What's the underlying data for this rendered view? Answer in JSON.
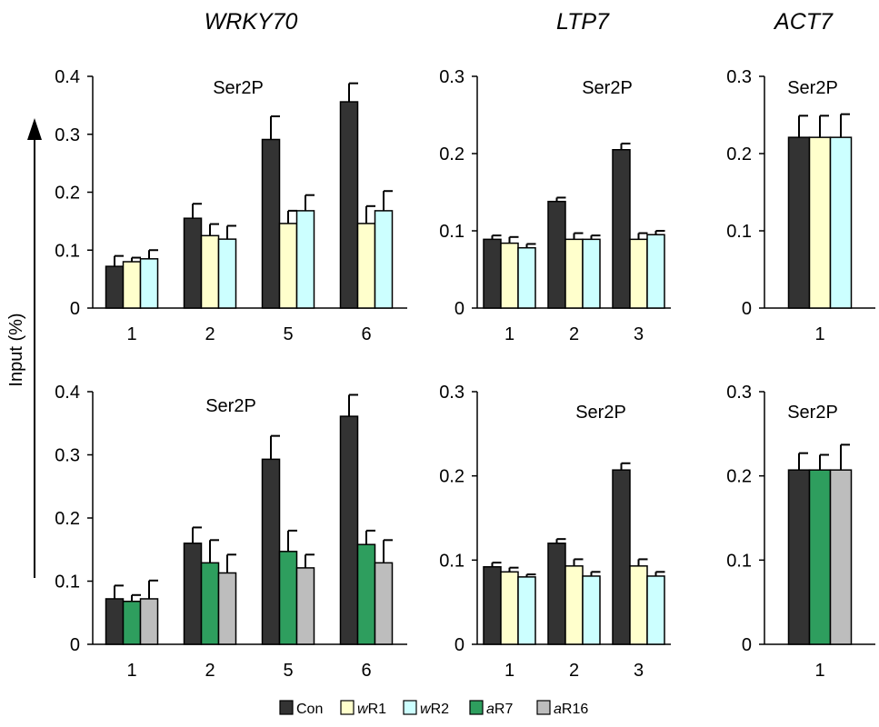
{
  "gene_titles": [
    "WRKY70",
    "LTP7",
    "ACT7"
  ],
  "ylabel": "Input (%)",
  "colors": {
    "Con": "#333333",
    "wR1": "#ffffcc",
    "wR2": "#ccffff",
    "aR7": "#2e9e5e",
    "aR16": "#bdbdbd",
    "bar_stroke": "#000000"
  },
  "legend": {
    "entries": [
      {
        "key": "Con",
        "prefix": "",
        "suffix": "Con"
      },
      {
        "key": "wR1",
        "prefix": "w",
        "suffix": "R1"
      },
      {
        "key": "wR2",
        "prefix": "w",
        "suffix": "R2"
      },
      {
        "key": "aR7",
        "prefix": "a",
        "suffix": "R7"
      },
      {
        "key": "aR16",
        "prefix": "a",
        "suffix": "R16"
      }
    ]
  },
  "chart_data": [
    {
      "type": "bar",
      "gene": "WRKY70",
      "row": "top",
      "label": "Ser2P",
      "categories": [
        "1",
        "2",
        "5",
        "6"
      ],
      "ylim": [
        0,
        0.4
      ],
      "yticks": [
        "0",
        "0.1",
        "0.2",
        "0.3",
        "0.4"
      ],
      "series": [
        {
          "key": "Con",
          "values": [
            0.072,
            0.155,
            0.291,
            0.356
          ],
          "errors": [
            0.018,
            0.025,
            0.04,
            0.032
          ]
        },
        {
          "key": "wR1",
          "values": [
            0.08,
            0.125,
            0.146,
            0.146
          ],
          "errors": [
            0.007,
            0.02,
            0.022,
            0.03
          ]
        },
        {
          "key": "wR2",
          "values": [
            0.085,
            0.119,
            0.168,
            0.168
          ],
          "errors": [
            0.015,
            0.023,
            0.027,
            0.034
          ]
        }
      ]
    },
    {
      "type": "bar",
      "gene": "LTP7",
      "row": "top",
      "label": "Ser2P",
      "categories": [
        "1",
        "2",
        "3"
      ],
      "ylim": [
        0,
        0.3
      ],
      "yticks": [
        "0",
        "0.1",
        "0.2",
        "0.3"
      ],
      "series": [
        {
          "key": "Con",
          "values": [
            0.089,
            0.138,
            0.205
          ],
          "errors": [
            0.005,
            0.005,
            0.008
          ]
        },
        {
          "key": "wR1",
          "values": [
            0.084,
            0.089,
            0.089
          ],
          "errors": [
            0.008,
            0.008,
            0.008
          ]
        },
        {
          "key": "wR2",
          "values": [
            0.078,
            0.089,
            0.095
          ],
          "errors": [
            0.005,
            0.005,
            0.005
          ]
        }
      ]
    },
    {
      "type": "bar",
      "gene": "ACT7",
      "row": "top",
      "label": "Ser2P",
      "categories": [
        "1"
      ],
      "ylim": [
        0,
        0.3
      ],
      "yticks": [
        "0",
        "0.1",
        "0.2",
        "0.3"
      ],
      "series": [
        {
          "key": "Con",
          "values": [
            0.221
          ],
          "errors": [
            0.028
          ]
        },
        {
          "key": "wR1",
          "values": [
            0.221
          ],
          "errors": [
            0.028
          ]
        },
        {
          "key": "wR2",
          "values": [
            0.221
          ],
          "errors": [
            0.03
          ]
        }
      ]
    },
    {
      "type": "bar",
      "gene": "WRKY70",
      "row": "bottom",
      "label": "Ser2P",
      "categories": [
        "1",
        "2",
        "5",
        "6"
      ],
      "ylim": [
        0,
        0.4
      ],
      "yticks": [
        "0",
        "0.1",
        "0.2",
        "0.3",
        "0.4"
      ],
      "series": [
        {
          "key": "Con",
          "values": [
            0.072,
            0.16,
            0.293,
            0.361
          ],
          "errors": [
            0.021,
            0.025,
            0.037,
            0.034
          ]
        },
        {
          "key": "aR7",
          "values": [
            0.068,
            0.129,
            0.147,
            0.158
          ],
          "errors": [
            0.01,
            0.036,
            0.033,
            0.022
          ]
        },
        {
          "key": "aR16",
          "values": [
            0.072,
            0.113,
            0.121,
            0.129
          ],
          "errors": [
            0.029,
            0.029,
            0.021,
            0.036
          ]
        }
      ]
    },
    {
      "type": "bar",
      "gene": "LTP7",
      "row": "bottom",
      "label": "Ser2P",
      "categories": [
        "1",
        "2",
        "3"
      ],
      "ylim": [
        0,
        0.3
      ],
      "yticks": [
        "0",
        "0.1",
        "0.2",
        "0.3"
      ],
      "series": [
        {
          "key": "Con",
          "values": [
            0.092,
            0.12,
            0.207
          ],
          "errors": [
            0.005,
            0.005,
            0.008
          ]
        },
        {
          "key": "wR1",
          "values": [
            0.086,
            0.093,
            0.093
          ],
          "errors": [
            0.005,
            0.008,
            0.008
          ]
        },
        {
          "key": "wR2",
          "values": [
            0.08,
            0.081,
            0.081
          ],
          "errors": [
            0.003,
            0.005,
            0.005
          ]
        }
      ]
    },
    {
      "type": "bar",
      "gene": "ACT7",
      "row": "bottom",
      "label": "Ser2P",
      "categories": [
        "1"
      ],
      "ylim": [
        0,
        0.3
      ],
      "yticks": [
        "0",
        "0.1",
        "0.2",
        "0.3"
      ],
      "series": [
        {
          "key": "Con",
          "values": [
            0.207
          ],
          "errors": [
            0.02
          ]
        },
        {
          "key": "aR7",
          "values": [
            0.207
          ],
          "errors": [
            0.018
          ]
        },
        {
          "key": "aR16",
          "values": [
            0.207
          ],
          "errors": [
            0.03
          ]
        }
      ]
    }
  ]
}
